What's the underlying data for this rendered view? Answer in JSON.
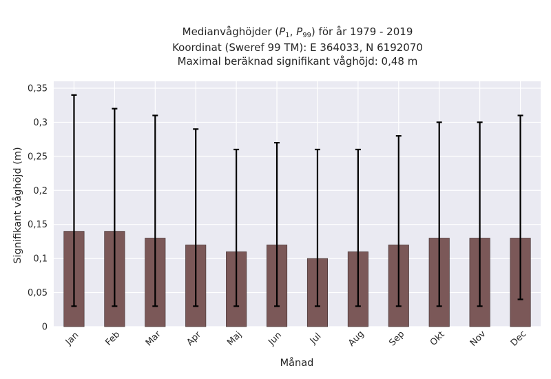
{
  "chart_data": {
    "type": "bar",
    "title_lines": [
      "Medianvåghöjder (P1, P99) för år 1979 - 2019",
      "Koordinat (Sweref 99 TM): E 364033, N 6192070",
      "Maximal beräknad signifikant våghöjd: 0,48 m"
    ],
    "xlabel": "Månad",
    "ylabel": "Signifikant våghöjd (m)",
    "categories": [
      "Jan",
      "Feb",
      "Mar",
      "Apr",
      "Maj",
      "Jun",
      "Jul",
      "Aug",
      "Sep",
      "Okt",
      "Nov",
      "Dec"
    ],
    "values": [
      0.14,
      0.14,
      0.13,
      0.12,
      0.11,
      0.12,
      0.1,
      0.11,
      0.12,
      0.13,
      0.13,
      0.13
    ],
    "p1": [
      0.03,
      0.03,
      0.03,
      0.03,
      0.03,
      0.03,
      0.03,
      0.03,
      0.03,
      0.03,
      0.03,
      0.04
    ],
    "p99": [
      0.34,
      0.32,
      0.31,
      0.29,
      0.26,
      0.27,
      0.26,
      0.26,
      0.28,
      0.3,
      0.3,
      0.31
    ],
    "ylim": [
      0,
      0.35
    ],
    "yticks": [
      0,
      0.05,
      0.1,
      0.15,
      0.2,
      0.25,
      0.3,
      0.35
    ],
    "ytick_labels": [
      "0",
      "0,05",
      "0,1",
      "0,15",
      "0,2",
      "0,25",
      "0,3",
      "0,35"
    ],
    "grid": true,
    "colors": {
      "bar": "#7b5858",
      "bar_edge": "#3a2a2a",
      "errorbar": "#000000",
      "plot_background": "#eaeaf2",
      "grid": "#ffffff"
    }
  }
}
